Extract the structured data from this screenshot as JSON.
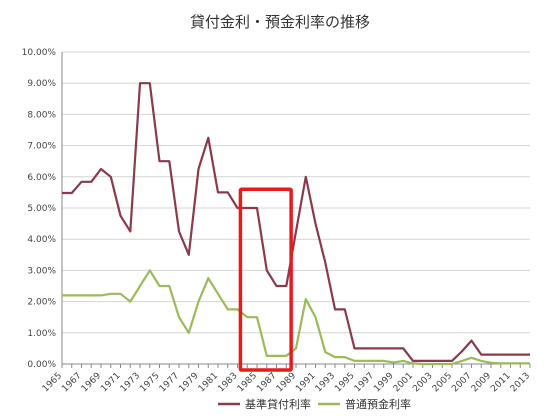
{
  "chart_data": {
    "type": "line",
    "title": "貸付金利・預金利率の推移",
    "xlabel": "",
    "ylabel": "",
    "x_tick_labels": [
      "1965",
      "1967",
      "1969",
      "1971",
      "1973",
      "1975",
      "1977",
      "1979",
      "1981",
      "1983",
      "1985",
      "1987",
      "1989",
      "1991",
      "1993",
      "1995",
      "1997",
      "1999",
      "2001",
      "2003",
      "2005",
      "2007",
      "2009",
      "2011",
      "2013"
    ],
    "y_tick_labels": [
      "0.00%",
      "1.00%",
      "2.00%",
      "3.00%",
      "4.00%",
      "5.00%",
      "6.00%",
      "7.00%",
      "8.00%",
      "9.00%",
      "10.00%"
    ],
    "xlim": [
      1965,
      2013
    ],
    "ylim": [
      0,
      10
    ],
    "grid": true,
    "legend_position": "bottom",
    "series": [
      {
        "name": "基準貸付利率",
        "color": "#8b3a4a",
        "points": [
          [
            1965,
            5.48
          ],
          [
            1966,
            5.48
          ],
          [
            1967,
            5.84
          ],
          [
            1968,
            5.84
          ],
          [
            1969,
            6.25
          ],
          [
            1970,
            6.0
          ],
          [
            1971,
            4.75
          ],
          [
            1972,
            4.25
          ],
          [
            1973,
            9.0
          ],
          [
            1974,
            9.0
          ],
          [
            1975,
            6.5
          ],
          [
            1976,
            6.5
          ],
          [
            1977,
            4.25
          ],
          [
            1978,
            3.5
          ],
          [
            1979,
            6.25
          ],
          [
            1980,
            7.25
          ],
          [
            1981,
            5.5
          ],
          [
            1982,
            5.5
          ],
          [
            1983,
            5.0
          ],
          [
            1984,
            5.0
          ],
          [
            1985,
            5.0
          ],
          [
            1986,
            3.0
          ],
          [
            1987,
            2.5
          ],
          [
            1988,
            2.5
          ],
          [
            1989,
            4.25
          ],
          [
            1990,
            6.0
          ],
          [
            1991,
            4.5
          ],
          [
            1992,
            3.25
          ],
          [
            1993,
            1.75
          ],
          [
            1994,
            1.75
          ],
          [
            1995,
            0.5
          ],
          [
            1996,
            0.5
          ],
          [
            1997,
            0.5
          ],
          [
            1998,
            0.5
          ],
          [
            1999,
            0.5
          ],
          [
            2000,
            0.5
          ],
          [
            2001,
            0.1
          ],
          [
            2002,
            0.1
          ],
          [
            2003,
            0.1
          ],
          [
            2004,
            0.1
          ],
          [
            2005,
            0.1
          ],
          [
            2006,
            0.4
          ],
          [
            2007,
            0.75
          ],
          [
            2008,
            0.3
          ],
          [
            2009,
            0.3
          ],
          [
            2010,
            0.3
          ],
          [
            2011,
            0.3
          ],
          [
            2012,
            0.3
          ],
          [
            2013,
            0.3
          ]
        ]
      },
      {
        "name": "普通預金利率",
        "color": "#9bbb59",
        "points": [
          [
            1965,
            2.2
          ],
          [
            1966,
            2.2
          ],
          [
            1967,
            2.2
          ],
          [
            1968,
            2.2
          ],
          [
            1969,
            2.2
          ],
          [
            1970,
            2.25
          ],
          [
            1971,
            2.25
          ],
          [
            1972,
            2.0
          ],
          [
            1973,
            2.5
          ],
          [
            1974,
            3.0
          ],
          [
            1975,
            2.5
          ],
          [
            1976,
            2.5
          ],
          [
            1977,
            1.5
          ],
          [
            1978,
            1.0
          ],
          [
            1979,
            2.0
          ],
          [
            1980,
            2.75
          ],
          [
            1981,
            2.25
          ],
          [
            1982,
            1.75
          ],
          [
            1983,
            1.75
          ],
          [
            1984,
            1.5
          ],
          [
            1985,
            1.5
          ],
          [
            1986,
            0.26
          ],
          [
            1987,
            0.26
          ],
          [
            1988,
            0.26
          ],
          [
            1989,
            0.5
          ],
          [
            1990,
            2.08
          ],
          [
            1991,
            1.5
          ],
          [
            1992,
            0.38
          ],
          [
            1993,
            0.22
          ],
          [
            1994,
            0.22
          ],
          [
            1995,
            0.1
          ],
          [
            1996,
            0.1
          ],
          [
            1997,
            0.1
          ],
          [
            1998,
            0.1
          ],
          [
            1999,
            0.05
          ],
          [
            2000,
            0.1
          ],
          [
            2001,
            0.02
          ],
          [
            2002,
            0.001
          ],
          [
            2003,
            0.001
          ],
          [
            2004,
            0.001
          ],
          [
            2005,
            0.001
          ],
          [
            2006,
            0.1
          ],
          [
            2007,
            0.2
          ],
          [
            2008,
            0.1
          ],
          [
            2009,
            0.04
          ],
          [
            2010,
            0.02
          ],
          [
            2011,
            0.02
          ],
          [
            2012,
            0.02
          ],
          [
            2013,
            0.02
          ]
        ]
      }
    ],
    "annotations": [
      {
        "kind": "highlight-box",
        "color": "#e31c1c",
        "x_range": [
          1983.3,
          1988.5
        ],
        "y_range": [
          0,
          5.6
        ]
      }
    ]
  }
}
